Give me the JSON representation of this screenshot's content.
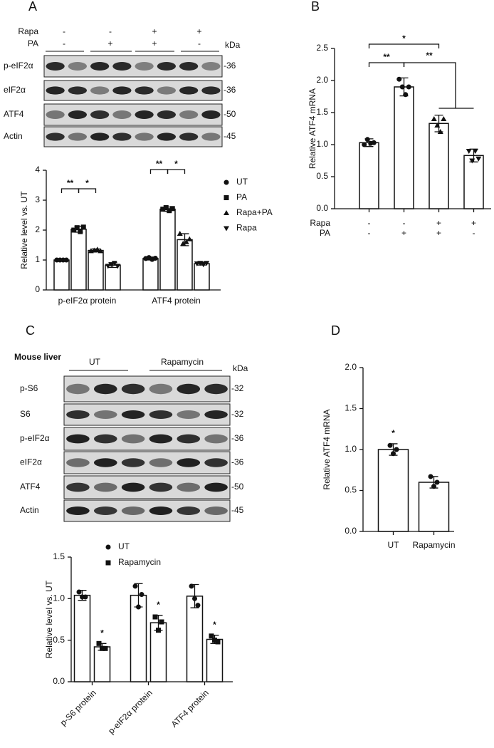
{
  "chart_data": [
    {
      "type": "bar",
      "panel": "A",
      "y_label": "Relative level vs. UT",
      "categories": [
        "p-eIF2α protein",
        "ATF4 protein"
      ],
      "ylim": [
        0,
        4
      ],
      "yticks": [
        0,
        1,
        2,
        3,
        4
      ],
      "series": [
        {
          "name": "UT",
          "marker": "circle",
          "values": [
            1.0,
            1.05
          ],
          "errors": [
            0.02,
            0.05
          ],
          "points": [
            [
              1.0,
              1.0,
              1.0,
              1.0
            ],
            [
              1.05,
              1.08,
              1.02,
              1.06
            ]
          ]
        },
        {
          "name": "PA",
          "marker": "square",
          "values": [
            2.03,
            2.7
          ],
          "errors": [
            0.1,
            0.07
          ],
          "points": [
            [
              2.0,
              2.08,
              1.95,
              2.1
            ],
            [
              2.7,
              2.75,
              2.65,
              2.72
            ]
          ]
        },
        {
          "name": "Rapa+PA",
          "marker": "triangle",
          "values": [
            1.32,
            1.68
          ],
          "errors": [
            0.05,
            0.2
          ],
          "points": [
            [
              1.3,
              1.32,
              1.35,
              1.3
            ],
            [
              1.88,
              1.55,
              1.6,
              1.7
            ]
          ]
        },
        {
          "name": "Rapa",
          "marker": "triangle-down",
          "values": [
            0.83,
            0.88
          ],
          "errors": [
            0.08,
            0.05
          ],
          "points": [
            [
              0.8,
              0.85,
              0.9,
              0.8
            ],
            [
              0.88,
              0.9,
              0.85,
              0.9
            ]
          ]
        }
      ],
      "significance": [
        "**",
        "*",
        "**",
        "*"
      ]
    },
    {
      "type": "bar",
      "panel": "B",
      "y_label": "Relative ATF4 mRNA",
      "ylim": [
        0,
        2.5
      ],
      "yticks": [
        {
          "value": 0,
          "label": "0.0"
        },
        0.5,
        {
          "value": 1,
          "label": "1.0"
        },
        1.5,
        {
          "value": 2,
          "label": "2.0"
        },
        2.5
      ],
      "values": [
        1.03,
        1.9,
        1.33,
        0.83
      ],
      "errors": [
        0.06,
        0.14,
        0.13,
        0.1
      ],
      "markers": [
        "circle",
        "circle",
        "triangle",
        "triangle-down"
      ],
      "points": [
        [
          1.0,
          1.08,
          1.02,
          1.03
        ],
        [
          2.02,
          1.9,
          1.78,
          1.9
        ],
        [
          1.4,
          1.3,
          1.2,
          1.4
        ],
        [
          0.9,
          0.75,
          0.9,
          0.78
        ]
      ],
      "rows": [
        {
          "label": "Rapa",
          "signs": [
            "-",
            "-",
            "+",
            "+"
          ]
        },
        {
          "label": "PA",
          "signs": [
            "-",
            "+",
            "+",
            "-"
          ]
        }
      ],
      "significance": [
        "**",
        "*",
        "**"
      ]
    },
    {
      "type": "bar",
      "panel": "C",
      "y_label": "Relative level vs. UT",
      "categories": [
        "p-S6 protein",
        "p-eIF2α protein",
        "ATF4 protein"
      ],
      "ylim": [
        0,
        1.5
      ],
      "yticks": [
        {
          "value": 0,
          "label": "0.0"
        },
        0.5,
        {
          "value": 1,
          "label": "1.0"
        },
        1.5
      ],
      "series": [
        {
          "name": "UT",
          "marker": "circle",
          "values": [
            1.04,
            1.04,
            1.03
          ],
          "errors": [
            0.06,
            0.14,
            0.14
          ],
          "points": [
            [
              1.08,
              1.02,
              1.02
            ],
            [
              1.15,
              0.9,
              1.05
            ],
            [
              1.15,
              1.0,
              0.92
            ]
          ]
        },
        {
          "name": "Rapamycin",
          "marker": "square",
          "values": [
            0.42,
            0.71,
            0.51
          ],
          "errors": [
            0.04,
            0.09,
            0.05
          ],
          "points": [
            [
              0.46,
              0.4,
              0.4
            ],
            [
              0.78,
              0.62,
              0.72
            ],
            [
              0.55,
              0.5,
              0.48
            ]
          ]
        }
      ],
      "significance": [
        "*",
        "*",
        "*"
      ]
    },
    {
      "type": "bar",
      "panel": "D",
      "y_label": "Relative ATF4 mRNA",
      "categories": [
        "UT",
        "Rapamycin"
      ],
      "ylim": [
        0,
        2
      ],
      "yticks": [
        {
          "value": 0,
          "label": "0.0"
        },
        0.5,
        {
          "value": 1,
          "label": "1.0"
        },
        1.5,
        {
          "value": 2,
          "label": "2.0"
        }
      ],
      "values": [
        1.0,
        0.6
      ],
      "errors": [
        0.07,
        0.07
      ],
      "markers": [
        "circle",
        "circle"
      ],
      "points": [
        [
          1.05,
          0.95,
          1.0
        ],
        [
          0.67,
          0.55,
          0.6
        ]
      ],
      "significance": [
        "*"
      ]
    }
  ],
  "blots": [
    {
      "header": [
        {
          "label": "Rapa",
          "signs": [
            "-",
            "-",
            "+",
            "+"
          ]
        },
        {
          "label": "PA",
          "signs": [
            "-",
            "+",
            "+",
            "-"
          ]
        }
      ],
      "kda": "kDa",
      "rows": [
        {
          "label": "p-eIF2α",
          "kda": "-36"
        },
        {
          "label": "eIF2α",
          "kda": "-36"
        },
        {
          "label": "ATF4",
          "kda": "-50"
        },
        {
          "label": "Actin",
          "kda": "-45"
        }
      ]
    },
    {
      "title": "Mouse liver",
      "groups": [
        "UT",
        "Rapamycin"
      ],
      "kda": "kDa",
      "rows": [
        {
          "label": "p-S6",
          "kda": "-32"
        },
        {
          "label": "S6",
          "kda": "-32"
        },
        {
          "label": "p-eIF2α",
          "kda": "-36"
        },
        {
          "label": "eIF2α",
          "kda": "-36"
        },
        {
          "label": "ATF4",
          "kda": "-50"
        },
        {
          "label": "Actin",
          "kda": "-45"
        }
      ]
    }
  ]
}
